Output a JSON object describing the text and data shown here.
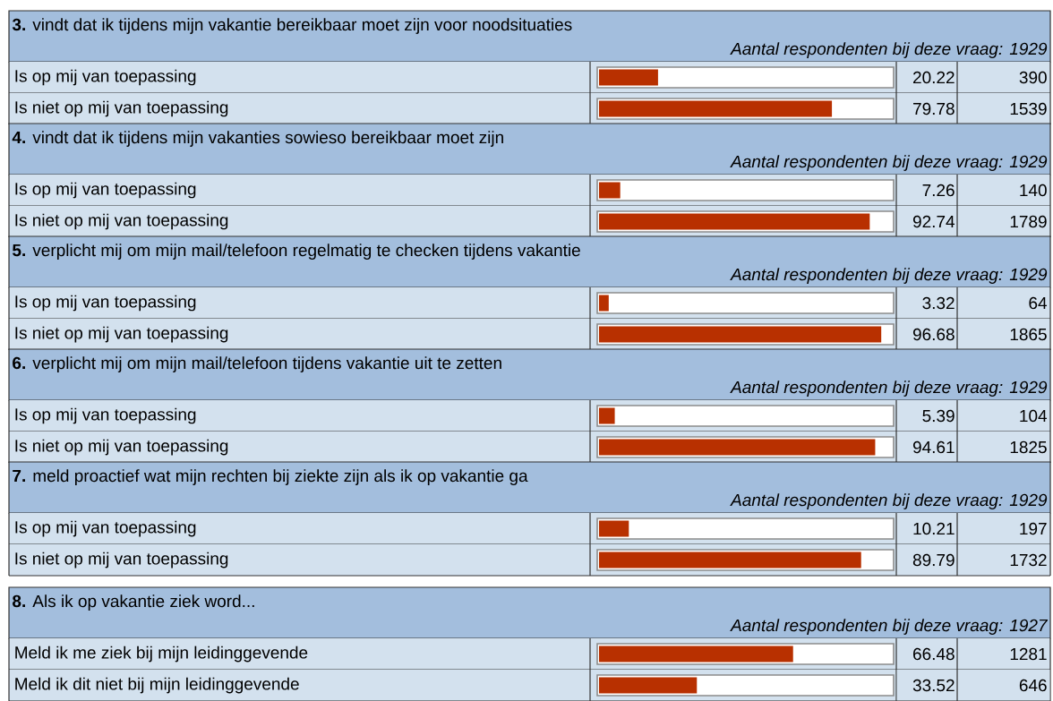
{
  "chart_data": [
    {
      "type": "bar",
      "orientation": "horizontal",
      "title": "**3.** vindt dat ik tijdens mijn vakantie bereikbaar moet zijn voor noodsituaties",
      "subtitle": "Aantal respondenten bij deze vraag: 1929",
      "categories": [
        "Is op mij van toepassing",
        "Is niet op mij van toepassing"
      ],
      "values": [
        20.22,
        79.78
      ],
      "data_labels": true,
      "annotations": [
        "390",
        "1539"
      ],
      "color": "#b83000",
      "xlim": [
        0,
        100
      ],
      "tick_labels": "y"
    },
    {
      "type": "bar",
      "orientation": "horizontal",
      "title": "**4.** vindt dat ik tijdens mijn vakanties sowieso bereikbaar moet zijn",
      "subtitle": "Aantal respondenten bij deze vraag: 1929",
      "categories": [
        "Is op mij van toepassing",
        "Is niet op mij van toepassing"
      ],
      "values": [
        7.26,
        92.74
      ],
      "data_labels": true,
      "annotations": [
        "140",
        "1789"
      ],
      "color": "#b83000",
      "xlim": [
        0,
        100
      ],
      "tick_labels": "y"
    },
    {
      "type": "bar",
      "orientation": "horizontal",
      "title": "**5.** verplicht mij om mijn mail/telefoon regelmatig te checken tijdens vakantie",
      "subtitle": "Aantal respondenten bij deze vraag: 1929",
      "categories": [
        "Is op mij van toepassing",
        "Is niet op mij van toepassing"
      ],
      "values": [
        3.32,
        96.68
      ],
      "data_labels": true,
      "annotations": [
        "64",
        "1865"
      ],
      "color": "#b83000",
      "xlim": [
        0,
        100
      ],
      "tick_labels": "y"
    },
    {
      "type": "bar",
      "orientation": "horizontal",
      "title": "**6.** verplicht mij om mijn mail/telefoon tijdens vakantie uit te zetten",
      "subtitle": "Aantal respondenten bij deze vraag: 1929",
      "categories": [
        "Is op mij van toepassing",
        "Is niet op mij van toepassing"
      ],
      "values": [
        5.39,
        94.61
      ],
      "data_labels": true,
      "annotations": [
        "104",
        "1825"
      ],
      "color": "#b83000",
      "xlim": [
        0,
        100
      ],
      "tick_labels": "y"
    },
    {
      "type": "bar",
      "orientation": "horizontal",
      "title": "**7.** meld proactief wat mijn rechten bij ziekte zijn als ik op vakantie ga",
      "subtitle": "Aantal respondenten bij deze vraag: 1929",
      "categories": [
        "Is op mij van toepassing",
        "Is niet op mij van toepassing"
      ],
      "values": [
        10.21,
        89.79
      ],
      "data_labels": true,
      "annotations": [
        "197",
        "1732"
      ],
      "color": "#b83000",
      "xlim": [
        0,
        100
      ],
      "tick_labels": "y"
    },
    {
      "type": "bar",
      "orientation": "horizontal",
      "title": "**8.** Als ik op vakantie ziek word...",
      "subtitle": "Aantal respondenten bij deze vraag: 1927",
      "categories": [
        "Meld ik me ziek bij mijn leidinggevende",
        "Meld ik dit niet bij mijn leidinggevende"
      ],
      "values": [
        66.48,
        33.52
      ],
      "data_labels": true,
      "annotations": [
        "1281",
        "646"
      ],
      "color": "#b83000",
      "xlim": [
        0,
        100
      ],
      "tick_labels": "y"
    }
  ]
}
